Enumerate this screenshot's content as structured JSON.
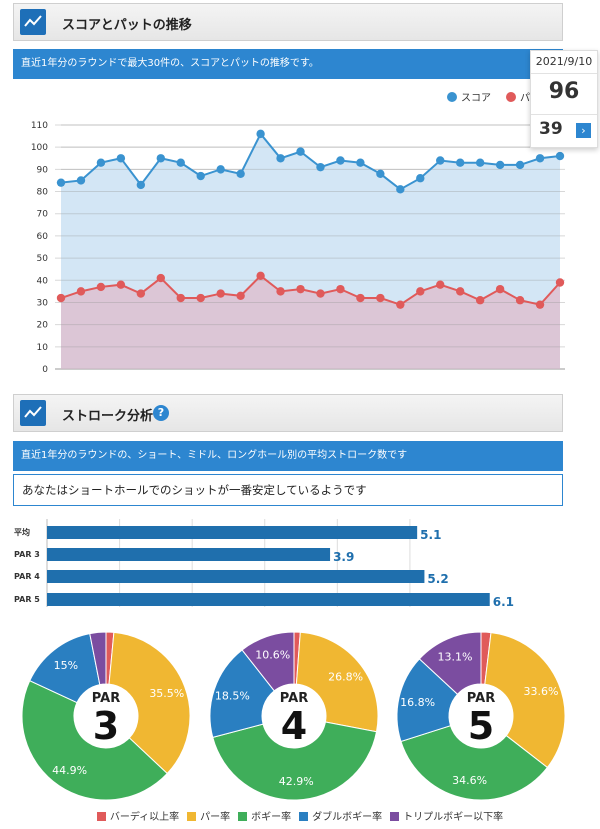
{
  "section1": {
    "title": "スコアとパットの推移",
    "description": "直近1年分のラウンドで最大30件の、スコアとパットの推移です。"
  },
  "section2": {
    "title": "ストローク分析",
    "help_icon": "?",
    "description": "直近1年分のラウンドの、ショート、ミドル、ロングホール別の平均ストローク数です",
    "message": "あなたはショートホールでのショットが一番安定しているようです"
  },
  "tooltip": {
    "date": "2021/9/10",
    "score": "96",
    "putts": "39",
    "arrow": "›"
  },
  "colors": {
    "score": "#3a93d0",
    "putt": "#e05a5a",
    "bar": "#1f6fad",
    "birdie": "#e05a5a",
    "par": "#f0b732",
    "bogey": "#3fae5a",
    "double": "#2a7fc1",
    "triple": "#7b4da0"
  },
  "chart_data": [
    {
      "type": "line",
      "legend": [
        "スコア",
        "パット"
      ],
      "legend_position": "top-right",
      "yticks": [
        "0",
        "10",
        "20",
        "30",
        "40",
        "50",
        "60",
        "70",
        "80",
        "90",
        "100",
        "110"
      ],
      "ylim": [
        0,
        115
      ],
      "grid": true,
      "series": [
        {
          "name": "スコア",
          "values": [
            84,
            85,
            93,
            95,
            83,
            95,
            93,
            87,
            90,
            88,
            106,
            95,
            98,
            91,
            94,
            93,
            88,
            81,
            86,
            94,
            93,
            93,
            92,
            92,
            95,
            96
          ]
        },
        {
          "name": "パット",
          "values": [
            32,
            35,
            37,
            38,
            34,
            41,
            32,
            32,
            34,
            33,
            42,
            35,
            36,
            34,
            36,
            32,
            32,
            29,
            35,
            38,
            35,
            31,
            36,
            31,
            29,
            39
          ]
        }
      ]
    },
    {
      "type": "bar",
      "orientation": "horizontal",
      "categories": [
        "平均",
        "PAR 3",
        "PAR 4",
        "PAR 5"
      ],
      "values": [
        5.1,
        3.9,
        5.2,
        6.1
      ],
      "labels": [
        "5.1",
        "3.9",
        "5.2",
        "6.1"
      ],
      "xlim": [
        0,
        6.2
      ]
    },
    {
      "type": "pie",
      "par_label": "PAR",
      "par_number": "3",
      "values": [
        1.5,
        35.5,
        44.9,
        15,
        3.1
      ],
      "labels": [
        "",
        "35.5%",
        "44.9%",
        "15%",
        ""
      ]
    },
    {
      "type": "pie",
      "par_label": "PAR",
      "par_number": "4",
      "values": [
        1.2,
        26.8,
        42.9,
        18.5,
        10.6
      ],
      "labels": [
        "",
        "26.8%",
        "42.9%",
        "18.5%",
        "10.6%"
      ]
    },
    {
      "type": "pie",
      "par_label": "PAR",
      "par_number": "5",
      "values": [
        1.9,
        33.6,
        34.6,
        16.8,
        13.1
      ],
      "labels": [
        "",
        "33.6%",
        "34.6%",
        "16.8%",
        "13.1%"
      ]
    }
  ],
  "pie_legend": [
    "バーディ以上率",
    "パー率",
    "ボギー率",
    "ダブルボギー率",
    "トリプルボギー以下率"
  ]
}
